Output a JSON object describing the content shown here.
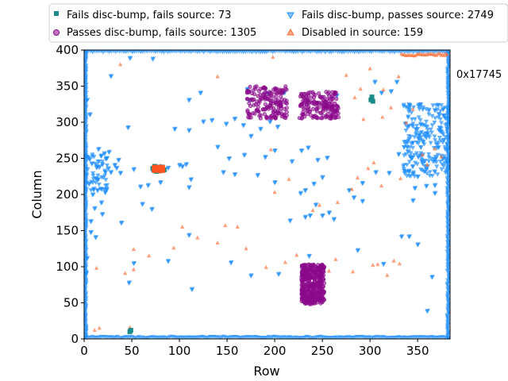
{
  "chart_data": {
    "type": "scatter",
    "xlabel": "Row",
    "ylabel": "Column",
    "xlim": [
      0,
      384
    ],
    "ylim": [
      0,
      400
    ],
    "xticks": [
      0,
      50,
      100,
      150,
      200,
      250,
      300,
      350
    ],
    "yticks": [
      0,
      50,
      100,
      150,
      200,
      250,
      300,
      350,
      400
    ],
    "grid": false,
    "legend_placement": "top, outside plot, two columns",
    "annotation": "0x17745",
    "series": [
      {
        "name": "Fails disc-bump, fails source: 73",
        "marker": "square",
        "color": "#1a8a8a",
        "points": [
          [
            73,
            234
          ],
          [
            75,
            236
          ],
          [
            77,
            233
          ],
          [
            79,
            238
          ],
          [
            81,
            235
          ],
          [
            74,
            239
          ],
          [
            76,
            232
          ],
          [
            78,
            237
          ],
          [
            80,
            233
          ],
          [
            82,
            238
          ],
          [
            72,
            236
          ],
          [
            84,
            234
          ],
          [
            301,
            331
          ],
          [
            302,
            335
          ],
          [
            303,
            329
          ],
          [
            48,
            10
          ],
          [
            49,
            12
          ]
        ]
      },
      {
        "name": "Passes disc-bump, fails source: 1305",
        "marker": "circle",
        "color": "#8b0a8b",
        "clusters": [
          {
            "x": [
              171,
              213
            ],
            "y": [
              305,
              350
            ],
            "count": 170
          },
          {
            "x": [
              226,
              267
            ],
            "y": [
              305,
              342
            ],
            "count": 170
          },
          {
            "x": [
              228,
              252
            ],
            "y": [
              48,
              103
            ],
            "count": 420
          }
        ]
      },
      {
        "name": "Fails disc-bump, passes source: 2749",
        "marker": "triangle-down",
        "color": "#1e8fff",
        "points": [
          [
            48,
            388
          ],
          [
            72,
            387
          ],
          [
            3,
            330
          ],
          [
            6,
            310
          ],
          [
            110,
            330
          ],
          [
            122,
            340
          ],
          [
            171,
            345
          ],
          [
            173,
            330
          ],
          [
            193,
            339
          ],
          [
            210,
            340
          ],
          [
            265,
            336
          ],
          [
            305,
            355
          ],
          [
            312,
            340
          ],
          [
            328,
            355
          ],
          [
            322,
            342
          ],
          [
            28,
            363
          ],
          [
            46,
            292
          ],
          [
            134,
            302
          ],
          [
            149,
            297
          ],
          [
            158,
            304
          ],
          [
            167,
            295
          ],
          [
            110,
            288
          ],
          [
            125,
            300
          ],
          [
            95,
            290
          ],
          [
            185,
            290
          ],
          [
            195,
            300
          ],
          [
            175,
            280
          ],
          [
            203,
            293
          ],
          [
            140,
            265
          ],
          [
            152,
            249
          ],
          [
            168,
            254
          ],
          [
            190,
            251
          ],
          [
            200,
            260
          ],
          [
            218,
            245
          ],
          [
            228,
            260
          ],
          [
            245,
            247
          ],
          [
            255,
            250
          ],
          [
            235,
            264
          ],
          [
            250,
            223
          ],
          [
            241,
            214
          ],
          [
            232,
            205
          ],
          [
            227,
            201
          ],
          [
            182,
            226
          ],
          [
            200,
            216
          ],
          [
            158,
            227
          ],
          [
            146,
            230
          ],
          [
            88,
            236
          ],
          [
            103,
            238
          ],
          [
            107,
            241
          ],
          [
            112,
            220
          ],
          [
            110,
            209
          ],
          [
            67,
            212
          ],
          [
            52,
            234
          ],
          [
            59,
            210
          ],
          [
            80,
            216
          ],
          [
            100,
            240
          ],
          [
            278,
            205
          ],
          [
            292,
            215
          ],
          [
            306,
            230
          ],
          [
            320,
            229
          ],
          [
            330,
            255
          ],
          [
            343,
            250
          ],
          [
            350,
            224
          ],
          [
            368,
            201
          ],
          [
            359,
            211
          ],
          [
            368,
            212
          ],
          [
            347,
            208
          ],
          [
            345,
            191
          ],
          [
            216,
            163
          ],
          [
            237,
            170
          ],
          [
            243,
            185
          ],
          [
            250,
            170
          ],
          [
            257,
            174
          ],
          [
            262,
            165
          ],
          [
            283,
            195
          ],
          [
            292,
            190
          ],
          [
            232,
            168
          ],
          [
            11,
            180
          ],
          [
            19,
            172
          ],
          [
            7,
            162
          ],
          [
            22,
            202
          ],
          [
            10,
            207
          ],
          [
            28,
            230
          ],
          [
            14,
            220
          ],
          [
            5,
            214
          ],
          [
            34,
            236
          ],
          [
            36,
            247
          ],
          [
            23,
            249
          ],
          [
            13,
            237
          ],
          [
            18,
            253
          ],
          [
            8,
            242
          ],
          [
            32,
            240
          ],
          [
            38,
            229
          ],
          [
            26,
            258
          ],
          [
            15,
            262
          ],
          [
            4,
            250
          ],
          [
            9,
            199
          ],
          [
            14,
            205
          ],
          [
            18,
            188
          ],
          [
            110,
            143
          ],
          [
            154,
            105
          ],
          [
            175,
            87
          ],
          [
            204,
            89
          ],
          [
            236,
            114
          ],
          [
            287,
            122
          ],
          [
            314,
            103
          ],
          [
            341,
            141
          ],
          [
            350,
            130
          ],
          [
            333,
            141
          ],
          [
            365,
            85
          ],
          [
            360,
            38
          ],
          [
            113,
            68
          ],
          [
            88,
            107
          ],
          [
            52,
            104
          ],
          [
            47,
            77
          ],
          [
            39,
            160
          ],
          [
            61,
            186
          ],
          [
            71,
            179
          ],
          [
            7,
            147
          ],
          [
            12,
            140
          ],
          [
            3,
            111
          ],
          [
            2,
            90
          ]
        ]
      },
      {
        "name": "Disabled in source: 159",
        "marker": "triangle-up",
        "color": "#ff6a30",
        "points": [
          [
            38,
            380
          ],
          [
            140,
            363
          ],
          [
            198,
            390
          ],
          [
            275,
            365
          ],
          [
            300,
            374
          ],
          [
            314,
            345
          ],
          [
            322,
            320
          ],
          [
            313,
            307
          ],
          [
            293,
            304
          ],
          [
            284,
            334
          ],
          [
            290,
            346
          ],
          [
            330,
            363
          ],
          [
            345,
            318
          ],
          [
            355,
            255
          ],
          [
            360,
            241
          ],
          [
            368,
            263
          ],
          [
            375,
            252
          ],
          [
            338,
            299
          ],
          [
            247,
            185
          ],
          [
            240,
            178
          ],
          [
            266,
            189
          ],
          [
            281,
            207
          ],
          [
            298,
            236
          ],
          [
            304,
            244
          ],
          [
            332,
            222
          ],
          [
            312,
            212
          ],
          [
            287,
            223
          ],
          [
            200,
            203
          ],
          [
            215,
            221
          ],
          [
            196,
            262
          ],
          [
            161,
            155
          ],
          [
            148,
            157
          ],
          [
            140,
            133
          ],
          [
            119,
            140
          ],
          [
            103,
            155
          ],
          [
            94,
            126
          ],
          [
            68,
            115
          ],
          [
            52,
            124
          ],
          [
            52,
            96
          ],
          [
            43,
            91
          ],
          [
            13,
            98
          ],
          [
            11,
            12
          ],
          [
            16,
            15
          ],
          [
            48,
            16
          ],
          [
            170,
            125
          ],
          [
            191,
            99
          ],
          [
            211,
            106
          ],
          [
            223,
            116
          ],
          [
            257,
            94
          ],
          [
            264,
            110
          ],
          [
            282,
            93
          ],
          [
            303,
            102
          ],
          [
            308,
            103
          ],
          [
            325,
            108
          ],
          [
            331,
            104
          ],
          [
            318,
            88
          ]
        ]
      }
    ]
  }
}
